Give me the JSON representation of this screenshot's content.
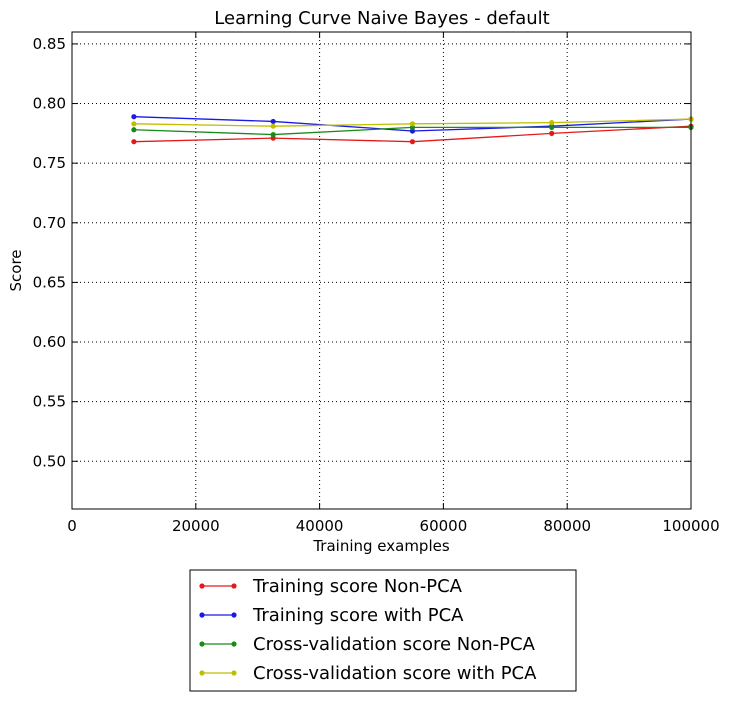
{
  "chart_data": {
    "type": "line",
    "title": "Learning Curve Naive Bayes - default",
    "xlabel": "Training examples",
    "ylabel": "Score",
    "xlim": [
      0,
      100000
    ],
    "ylim": [
      0.46,
      0.86
    ],
    "x_ticks": [
      0,
      20000,
      40000,
      60000,
      80000,
      100000
    ],
    "x_tick_labels": [
      "0",
      "20000",
      "40000",
      "60000",
      "80000",
      "100000"
    ],
    "y_ticks": [
      0.5,
      0.55,
      0.6,
      0.65,
      0.7,
      0.75,
      0.8,
      0.85
    ],
    "y_tick_labels": [
      "0.50",
      "0.55",
      "0.60",
      "0.65",
      "0.70",
      "0.75",
      "0.80",
      "0.85"
    ],
    "grid": true,
    "legend_position": "below-plot",
    "x": [
      10000,
      32500,
      55000,
      77500,
      100000
    ],
    "series": [
      {
        "name": "Training score Non-PCA",
        "color": "#e41a1a",
        "values": [
          0.768,
          0.771,
          0.768,
          0.775,
          0.781
        ]
      },
      {
        "name": "Training score with PCA",
        "color": "#1a1ae4",
        "values": [
          0.789,
          0.785,
          0.777,
          0.781,
          0.787
        ]
      },
      {
        "name": "Cross-validation score Non-PCA",
        "color": "#1a8a1a",
        "values": [
          0.778,
          0.774,
          0.78,
          0.78,
          0.78
        ]
      },
      {
        "name": "Cross-validation score with PCA",
        "color": "#bfbf00",
        "values": [
          0.783,
          0.781,
          0.783,
          0.784,
          0.787
        ]
      }
    ]
  }
}
